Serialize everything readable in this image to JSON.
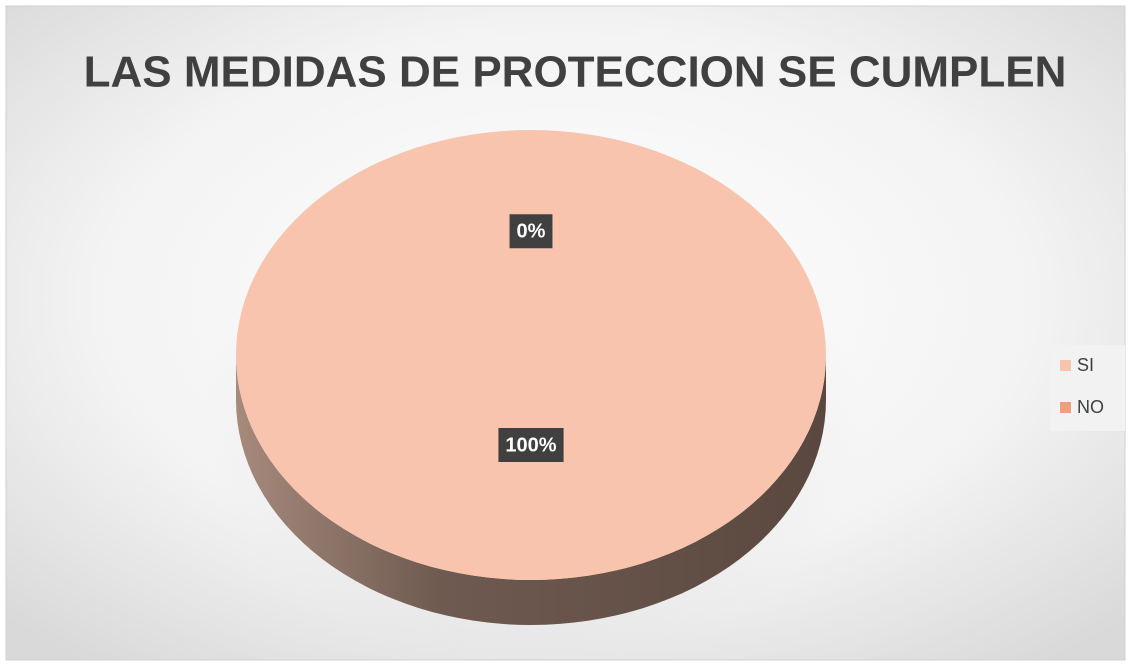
{
  "chart_data": {
    "type": "pie",
    "title": "LAS MEDIDAS DE PROTECCION SE CUMPLEN",
    "categories": [
      "SI",
      "NO"
    ],
    "values": [
      100,
      0
    ],
    "value_labels": [
      "100%",
      "0%"
    ],
    "colors": [
      "#f8c4ad",
      "#ee9f7c"
    ],
    "legend": "right"
  }
}
